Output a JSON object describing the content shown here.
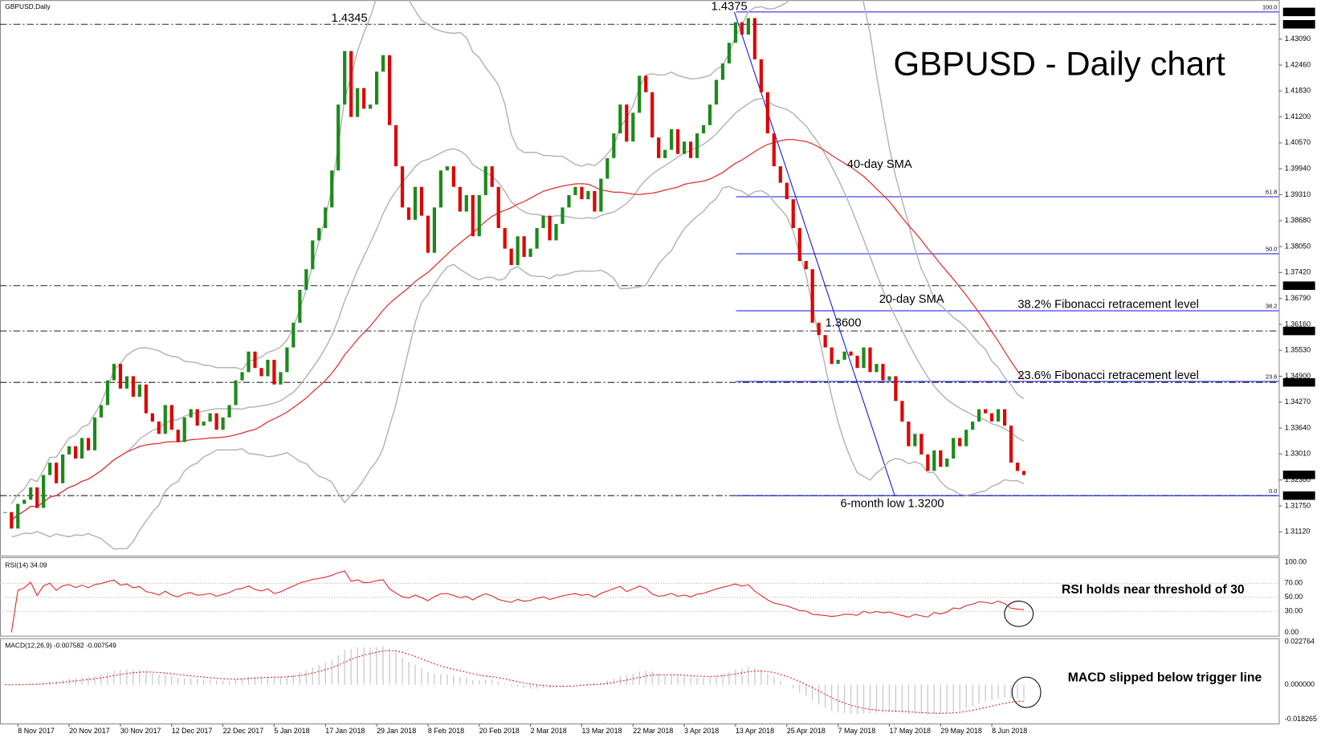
{
  "chart_data": [
    {
      "type": "candlestick",
      "title": "GBPUSD - Daily chart",
      "header": "GBPUSD,Daily",
      "categories": [
        null,
        null,
        "8 Nov 2017",
        null,
        null,
        null,
        null,
        null,
        null,
        null,
        "20 Nov 2017",
        null,
        null,
        null,
        null,
        null,
        null,
        null,
        "30 Nov 2017",
        null,
        null,
        null,
        null,
        null,
        null,
        null,
        "12 Dec 2017",
        null,
        null,
        null,
        null,
        null,
        null,
        null,
        "22 Dec 2017",
        null,
        null,
        null,
        null,
        null,
        null,
        null,
        "5 Jan 2018",
        null,
        null,
        null,
        null,
        null,
        null,
        null,
        "17 Jan 2018",
        null,
        null,
        null,
        null,
        null,
        null,
        null,
        "29 Jan 2018",
        null,
        null,
        null,
        null,
        null,
        null,
        null,
        "8 Feb 2018",
        null,
        null,
        null,
        null,
        null,
        null,
        null,
        "20 Feb 2018",
        null,
        null,
        null,
        null,
        null,
        null,
        null,
        "2 Mar 2018",
        null,
        null,
        null,
        null,
        null,
        null,
        null,
        "13 Mar 2018",
        null,
        null,
        null,
        null,
        null,
        null,
        null,
        "22 Mar 2018",
        null,
        null,
        null,
        null,
        null,
        null,
        null,
        "3 Apr 2018",
        null,
        null,
        null,
        null,
        null,
        null,
        null,
        "13 Apr 2018",
        null,
        null,
        null,
        null,
        null,
        null,
        null,
        "25 Apr 2018",
        null,
        null,
        null,
        null,
        null,
        null,
        null,
        "7 May 2018",
        null,
        null,
        null,
        null,
        null,
        null,
        null,
        "17 May 2018",
        null,
        null,
        null,
        null,
        null,
        null,
        null,
        "29 May 2018",
        null,
        null,
        null,
        null,
        null,
        null,
        null,
        "8 Jun 2018",
        null,
        null,
        null,
        null,
        null
      ],
      "close": [
        1.316,
        1.312,
        1.318,
        1.319,
        1.322,
        1.317,
        1.325,
        1.328,
        1.323,
        1.33,
        1.332,
        1.329,
        1.334,
        1.331,
        1.339,
        1.342,
        1.348,
        1.352,
        1.346,
        1.349,
        1.344,
        1.347,
        1.34,
        1.338,
        1.335,
        1.342,
        1.336,
        1.333,
        1.339,
        1.341,
        1.337,
        1.338,
        1.34,
        1.336,
        1.339,
        1.342,
        1.348,
        1.35,
        1.355,
        1.351,
        1.349,
        1.353,
        1.347,
        1.35,
        1.356,
        1.362,
        1.37,
        1.375,
        1.382,
        1.385,
        1.39,
        1.399,
        1.415,
        1.428,
        1.412,
        1.419,
        1.414,
        1.415,
        1.423,
        1.427,
        1.41,
        1.4,
        1.39,
        1.387,
        1.395,
        1.388,
        1.379,
        1.39,
        1.399,
        1.4,
        1.395,
        1.389,
        1.393,
        1.383,
        1.393,
        1.4,
        1.395,
        1.385,
        1.38,
        1.376,
        1.383,
        1.378,
        1.38,
        1.385,
        1.388,
        1.382,
        1.386,
        1.39,
        1.393,
        1.395,
        1.392,
        1.394,
        1.389,
        1.397,
        1.402,
        1.408,
        1.415,
        1.406,
        1.413,
        1.422,
        1.418,
        1.407,
        1.402,
        1.404,
        1.409,
        1.403,
        1.406,
        1.402,
        1.408,
        1.41,
        1.415,
        1.421,
        1.425,
        1.43,
        1.435,
        1.432,
        1.436,
        1.426,
        1.418,
        1.408,
        1.4,
        1.396,
        1.392,
        1.385,
        1.377,
        1.375,
        1.362,
        1.359,
        1.356,
        1.352,
        1.353,
        1.355,
        1.354,
        1.351,
        1.356,
        1.35,
        1.352,
        1.348,
        1.349,
        1.343,
        1.338,
        1.332,
        1.335,
        1.33,
        1.326,
        1.331,
        1.327,
        1.329,
        1.334,
        1.332,
        1.336,
        1.338,
        1.341,
        1.34,
        1.338,
        1.341,
        1.337,
        1.328,
        1.326,
        1.325
      ],
      "up_color": "#1a8a1a",
      "down_color": "#e00000",
      "ylim": [
        1.30544,
        1.44037
      ],
      "yticks": [
        {
          "value": 1.4309,
          "label": "1.43090"
        },
        {
          "value": 1.4246,
          "label": "1.42460"
        },
        {
          "value": 1.4183,
          "label": "1.41830"
        },
        {
          "value": 1.412,
          "label": "1.41200"
        },
        {
          "value": 1.4057,
          "label": "1.40570"
        },
        {
          "value": 1.3994,
          "label": "1.39940"
        },
        {
          "value": 1.3931,
          "label": "1.39310"
        },
        {
          "value": 1.3868,
          "label": "1.38680"
        },
        {
          "value": 1.3805,
          "label": "1.38050"
        },
        {
          "value": 1.3742,
          "label": "1.37420"
        },
        {
          "value": 1.3679,
          "label": "1.36790"
        },
        {
          "value": 1.3616,
          "label": "1.36160"
        },
        {
          "value": 1.3553,
          "label": "1.35530"
        },
        {
          "value": 1.349,
          "label": "1.34900"
        },
        {
          "value": 1.3427,
          "label": "1.34270"
        },
        {
          "value": 1.3364,
          "label": "1.33640"
        },
        {
          "value": 1.3301,
          "label": "1.33010"
        },
        {
          "value": 1.3238,
          "label": "1.32380"
        },
        {
          "value": 1.3175,
          "label": "1.31750"
        },
        {
          "value": 1.3112,
          "label": "1.31120"
        }
      ],
      "marked_prices": [
        {
          "value": 1.4375,
          "label": "1.43750"
        },
        {
          "value": 1.4345,
          "label": "1.43450"
        },
        {
          "value": 1.371,
          "label": "1.37100"
        },
        {
          "value": 1.36,
          "label": "1.36000"
        },
        {
          "value": 1.3475,
          "label": "1.34750"
        },
        {
          "value": 1.32504,
          "label": "1.32504"
        },
        {
          "value": 1.32,
          "label": "1.32000"
        }
      ],
      "levels": [
        1.4345,
        1.371,
        1.36,
        1.3475,
        1.32
      ],
      "fib": {
        "levels": [
          100,
          61.8,
          50,
          38.2,
          23.6,
          0
        ],
        "level_labels": [
          "100.0",
          "61.8",
          "50.0",
          "38.2",
          "23.6",
          "0.0"
        ],
        "prices": [
          1.4375,
          1.3926,
          1.37875,
          1.3649,
          1.34773,
          1.32
        ],
        "color": "#1010e0"
      },
      "sma_periods": [
        20,
        40
      ],
      "bands_deviation": 2,
      "sma_colors": [
        "#b4b4b4",
        "#e03030"
      ],
      "annotations": [
        "1.4345",
        "1.4375",
        "40-day SMA",
        "20-day SMA",
        "38.2% Fibonacci retracement level",
        "23.6% Fibonacci retracement level",
        "1.3600",
        "6-month low 1.3200"
      ]
    },
    {
      "type": "rsi",
      "label": "RSI(14) 34.09",
      "period": 14,
      "color": "#e02020",
      "ylim": [
        -4.8,
        107.2
      ],
      "yticks": [
        {
          "value": 100,
          "label": "100.00"
        },
        {
          "value": 70,
          "label": "70.00"
        },
        {
          "value": 50,
          "label": "50.00"
        },
        {
          "value": 30,
          "label": "30.00"
        },
        {
          "value": 0,
          "label": "0.00"
        }
      ],
      "annotation": "RSI holds near threshold of 30"
    },
    {
      "type": "macd",
      "label": "MACD(12,26,9) -0.007582 -0.007549",
      "periods": [
        12,
        26,
        9
      ],
      "color": "#c8c8c8",
      "signal_color": "#e02020",
      "ylim": [
        -0.02054,
        0.02455
      ],
      "yticks": [
        0.022764,
        {
          "value": 0,
          "label": "0.000000"
        },
        -0.018265
      ],
      "annotation": "MACD slipped below trigger line"
    }
  ]
}
